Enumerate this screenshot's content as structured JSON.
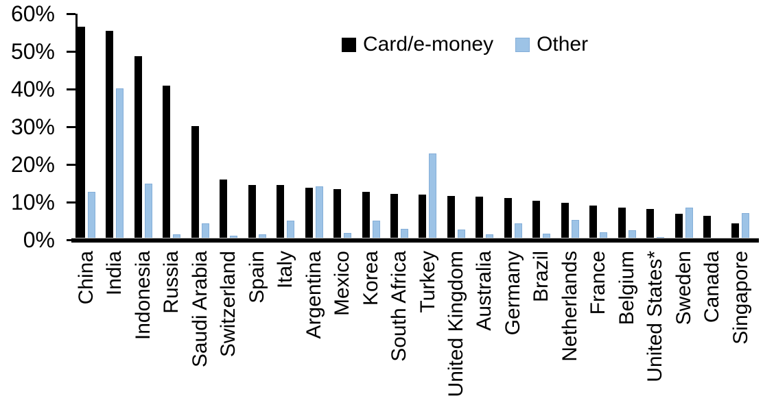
{
  "chart_data": {
    "type": "bar",
    "title": "",
    "xlabel": "",
    "ylabel": "",
    "ylim": [
      0,
      60
    ],
    "yticks": [
      0,
      10,
      20,
      30,
      40,
      50,
      60
    ],
    "ytick_suffix": "%",
    "grid": false,
    "legend_position": "top-center",
    "categories": [
      "China",
      "India",
      "Indonesia",
      "Russia",
      "Saudi Arabia",
      "Switzerland",
      "Spain",
      "Italy",
      "Argentina",
      "Mexico",
      "Korea",
      "South Africa",
      "Turkey",
      "United Kingdom",
      "Australia",
      "Germany",
      "Brazil",
      "Netherlands",
      "France",
      "Belgium",
      "United States*",
      "Sweden",
      "Canada",
      "Singapore"
    ],
    "series": [
      {
        "name": "Card/e-money",
        "color": "#000000",
        "values": [
          56.2,
          55.0,
          48.3,
          40.5,
          29.9,
          15.7,
          14.2,
          14.1,
          13.4,
          13.0,
          12.3,
          11.8,
          11.6,
          11.2,
          11.0,
          10.7,
          10.0,
          9.4,
          8.7,
          8.2,
          7.9,
          6.6,
          6.0,
          4.0
        ]
      },
      {
        "name": "Other",
        "color": "#9DC3E6",
        "values": [
          12.4,
          39.8,
          14.6,
          1.0,
          4.0,
          0.8,
          1.0,
          4.7,
          13.9,
          1.4,
          4.7,
          2.5,
          22.6,
          2.4,
          1.1,
          4.0,
          1.3,
          4.9,
          1.6,
          2.1,
          0.4,
          8.1,
          0,
          6.7
        ]
      }
    ]
  }
}
